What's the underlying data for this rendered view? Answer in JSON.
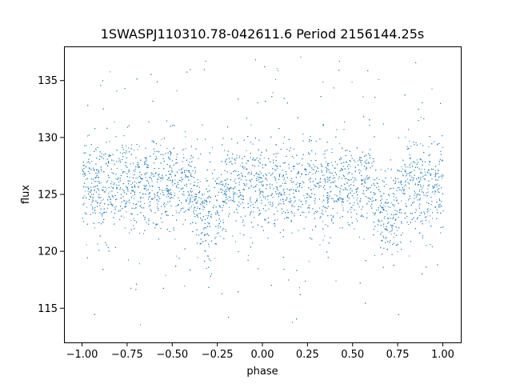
{
  "chart_data": {
    "type": "scatter",
    "title": "1SWASPJ110310.78-042611.6 Period 2156144.25s",
    "xlabel": "phase",
    "ylabel": "flux",
    "xlim": [
      -1.1,
      1.1
    ],
    "ylim": [
      112.0,
      138.0
    ],
    "grid": false,
    "legend": "none",
    "marker_color": "#1f77b4",
    "x_ticks": [
      -1.0,
      -0.75,
      -0.5,
      -0.25,
      0.0,
      0.25,
      0.5,
      0.75,
      1.0
    ],
    "x_tick_labels": [
      "−1.00",
      "−0.75",
      "−0.50",
      "−0.25",
      "0.00",
      "0.25",
      "0.50",
      "0.75",
      "1.00"
    ],
    "y_ticks": [
      115,
      120,
      125,
      130,
      135
    ],
    "y_tick_labels": [
      "115",
      "120",
      "125",
      "130",
      "135"
    ],
    "series": [
      {
        "x_range": [
          -1.0,
          1.0
        ],
        "baseline_flux": 125.8,
        "core_scatter": 2.0,
        "outlier_range": [
          113.5,
          137.5
        ],
        "eclipse_phases": [
          -0.3,
          0.7
        ],
        "eclipse_depth": 2.5,
        "eclipse_halfwidth": 0.1
      }
    ]
  }
}
